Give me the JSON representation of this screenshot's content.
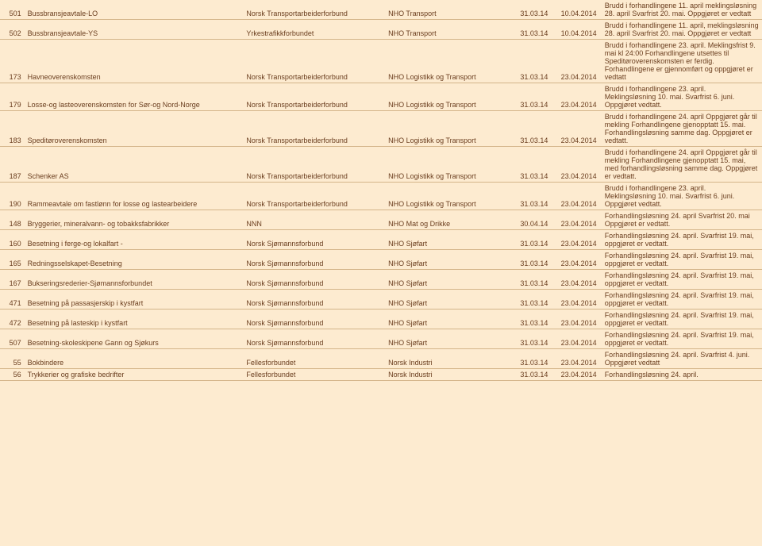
{
  "rows": [
    {
      "id": "501",
      "name": "Bussbransjeavtale-LO",
      "union": "Norsk Transportarbeiderforbund",
      "assoc": "NHO Transport",
      "d1": "31.03.14",
      "d2": "10.04.2014",
      "text": "Brudd i forhandlingene 11. april meklingsløsning 28. april Svarfrist 20. mai. Oppgjøret er vedtatt"
    },
    {
      "id": "502",
      "name": "Bussbransjeavtale-YS",
      "union": "Yrkestrafikkforbundet",
      "assoc": "NHO Transport",
      "d1": "31.03.14",
      "d2": "10.04.2014",
      "text": "Brudd i forhandlingene 11. april, meklingsløsning 28. april Svarfrist 20. mai. Oppgjøret er vedtatt"
    },
    {
      "id": "173",
      "name": "Havneoverenskomsten",
      "union": "Norsk Transportarbeiderforbund",
      "assoc": "NHO Logistikk og Transport",
      "d1": "31.03.14",
      "d2": "23.04.2014",
      "text": "Brudd i forhandlingene 23. april. Meklingsfrist 9. mai kl 24:00 Forhandlingene utsettes til Speditøroverenskomsten er ferdig. Forhandlingene er gjennomført og oppgjøret er vedtatt"
    },
    {
      "id": "179",
      "name": "Losse-og lasteoverenskomsten for Sør-og Nord-Norge",
      "union": "Norsk Transportarbeiderforbund",
      "assoc": "NHO Logistikk og Transport",
      "d1": "31.03.14",
      "d2": "23.04.2014",
      "text": "Brudd i forhandlingene 23. april. Meklingsløsning 10. mai. Svarfrist 6. juni. Oppgjøret vedtatt."
    },
    {
      "id": "183",
      "name": "Speditøroverenskomsten",
      "union": "Norsk Transportarbeiderforbund",
      "assoc": "NHO Logistikk og Transport",
      "d1": "31.03.14",
      "d2": "23.04.2014",
      "text": "Brudd i forhandlingene 24. april Oppgjøret går til mekling Forhandlingene gjenopptatt 15. mai. Forhandlingsløsning samme dag. Oppgjøret er vedtatt."
    },
    {
      "id": "187",
      "name": "Schenker AS",
      "union": "Norsk Transportarbeiderforbund",
      "assoc": "NHO Logistikk og Transport",
      "d1": "31.03.14",
      "d2": "23.04.2014",
      "text": "Brudd i forhandlingene 24. april Oppgjøret går til mekling Forhandlingene gjenopptatt 15. mai, med forhandlingsløsning samme dag. Oppgjøret er vedtatt."
    },
    {
      "id": "190",
      "name": "Rammeavtale om fastlønn for losse og lastearbeidere",
      "union": "Norsk Transportarbeiderforbund",
      "assoc": "NHO Logistikk og Transport",
      "d1": "31.03.14",
      "d2": "23.04.2014",
      "text": "Brudd i forhandlingene 23. april. Meklingsløsning 10. mai. Svarfrist 6. juni. Oppgjøret vedtatt."
    },
    {
      "id": "148",
      "name": "Bryggerier, mineralvann- og tobakksfabrikker",
      "union": "NNN",
      "assoc": "NHO Mat og Drikke",
      "d1": "30.04.14",
      "d2": "23.04.2014",
      "text": "Forhandlingsløsning 24. april Svarfrist 20. mai Oppgjøret er vedtatt."
    },
    {
      "id": "160",
      "name": "Besetning i ferge-og lokalfart -",
      "union": "Norsk Sjømannsforbund",
      "assoc": "NHO Sjøfart",
      "d1": "31.03.14",
      "d2": "23.04.2014",
      "text": "Forhandlingsløsning 24. april. Svarfrist 19. mai, oppgjøret er vedtatt."
    },
    {
      "id": "165",
      "name": "Redningsselskapet-Besetning",
      "union": "Norsk Sjømannsforbund",
      "assoc": "NHO Sjøfart",
      "d1": "31.03.14",
      "d2": "23.04.2014",
      "text": "Forhandlingsløsning 24. april. Svarfrist 19. mai, oppgjøret er vedtatt."
    },
    {
      "id": "167",
      "name": "Bukseringsrederier-Sjømannsforbundet",
      "union": "Norsk Sjømannsforbund",
      "assoc": "NHO Sjøfart",
      "d1": "31.03.14",
      "d2": "23.04.2014",
      "text": "Forhandlingsløsning 24. april. Svarfrist 19. mai, oppgjøret er vedtatt."
    },
    {
      "id": "471",
      "name": "Besetning på passasjerskip i kystfart",
      "union": "Norsk Sjømannsforbund",
      "assoc": "NHO Sjøfart",
      "d1": "31.03.14",
      "d2": "23.04.2014",
      "text": "Forhandlingsløsning 24. april. Svarfrist 19. mai, oppgjøret er vedtatt."
    },
    {
      "id": "472",
      "name": "Besetning på lasteskip i kystfart",
      "union": "Norsk Sjømannsforbund",
      "assoc": "NHO Sjøfart",
      "d1": "31.03.14",
      "d2": "23.04.2014",
      "text": "Forhandlingsløsning 24. april. Svarfrist 19. mai, oppgjøret er vedtatt."
    },
    {
      "id": "507",
      "name": "Besetning-skoleskipene Gann og Sjøkurs",
      "union": "Norsk Sjømannsforbund",
      "assoc": "NHO Sjøfart",
      "d1": "31.03.14",
      "d2": "23.04.2014",
      "text": "Forhandlingsløsning 24. april. Svarfrist 19. mai, oppgjøret er vedtatt."
    },
    {
      "id": "55",
      "name": "Bokbindere",
      "union": "Fellesforbundet",
      "assoc": "Norsk Industri",
      "d1": "31.03.14",
      "d2": "23.04.2014",
      "text": "Forhandlingsløsning 24. april. Svarfrist 4. juni. Oppgjøret vedtatt"
    },
    {
      "id": "56",
      "name": "Trykkerier og grafiske bedrifter",
      "union": "Fellesforbundet",
      "assoc": "Norsk Industri",
      "d1": "31.03.14",
      "d2": "23.04.2014",
      "text": "Forhandlingsløsning 24. april."
    }
  ]
}
